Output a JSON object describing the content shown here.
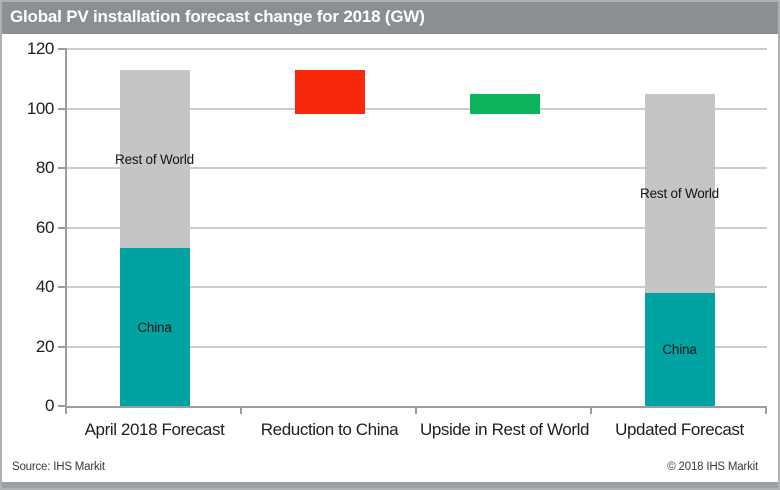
{
  "header": {
    "title": "Global PV installation forecast change for 2018 (GW)"
  },
  "footer": {
    "source": "Source: IHS Markit",
    "copyright": "© 2018 IHS Markit"
  },
  "chart_data": {
    "type": "bar",
    "subtype": "waterfall_stacked",
    "title": "Global PV installation forecast change for 2018 (GW)",
    "unit": "GW",
    "xlabel": "",
    "ylabel": "",
    "ylim": [
      0,
      120
    ],
    "yticks": [
      0,
      20,
      40,
      60,
      80,
      100,
      120
    ],
    "grid": true,
    "legend": "none (segment labels inside bars)",
    "categories": [
      "April 2018 Forecast",
      "Reduction to China",
      "Upside in Rest of World",
      "Updated Forecast"
    ],
    "colors": {
      "china": "#00A2A2",
      "rest_of_world": "#C3C5C7",
      "reduction": "#F8280C",
      "upside": "#0BB45C"
    },
    "columns": [
      {
        "category": "April 2018 Forecast",
        "total": 113,
        "segments": [
          {
            "label": "China",
            "from": 0,
            "to": 53,
            "value": 53,
            "color_key": "china"
          },
          {
            "label": "Rest of World",
            "from": 53,
            "to": 113,
            "value": 60,
            "color_key": "rest_of_world"
          }
        ]
      },
      {
        "category": "Reduction to China",
        "change": -15,
        "segments": [
          {
            "label": "",
            "from": 98,
            "to": 113,
            "value": -15,
            "color_key": "reduction"
          }
        ]
      },
      {
        "category": "Upside in Rest of World",
        "change": 7,
        "segments": [
          {
            "label": "",
            "from": 98,
            "to": 105,
            "value": 7,
            "color_key": "upside"
          }
        ]
      },
      {
        "category": "Updated Forecast",
        "total": 105,
        "segments": [
          {
            "label": "China",
            "from": 0,
            "to": 38,
            "value": 38,
            "color_key": "china"
          },
          {
            "label": "Rest of World",
            "from": 38,
            "to": 105,
            "value": 67,
            "color_key": "rest_of_world"
          }
        ]
      }
    ]
  }
}
